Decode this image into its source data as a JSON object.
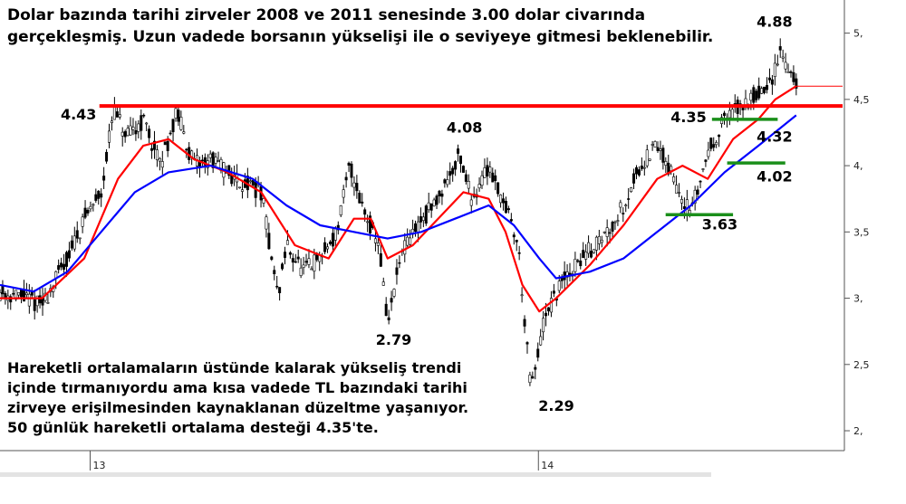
{
  "chart_data": {
    "type": "line",
    "subtype": "candlestick-with-moving-averages",
    "title_lines": [
      "Dolar bazında tarihi zirveler 2008 ve 2011 senesinde 3.00 dolar civarında",
      "gerçekleşmiş. Uzun vadede borsanın yükselişi ile o seviyeye gitmesi beklenebilir."
    ],
    "comment_lines": [
      "Hareketli ortalamaların üstünde kalarak yükseliş trendi",
      "içinde tırmanıyordu ama kısa vadede TL bazındaki tarihi",
      "zirveye erişilmesinden kaynaklanan düzeltme yaşanıyor.",
      "50 günlük hareketli ortalama desteği 4.35'te."
    ],
    "y_axis": {
      "ylim": [
        1.85,
        5.25
      ],
      "ticks": [
        {
          "value": 5.0,
          "label": "5,"
        },
        {
          "value": 4.5,
          "label": "4,5"
        },
        {
          "value": 4.0,
          "label": "4,"
        },
        {
          "value": 3.5,
          "label": "3,5"
        },
        {
          "value": 3.0,
          "label": "3,"
        },
        {
          "value": 2.5,
          "label": "2,5"
        },
        {
          "value": 2.0,
          "label": "2,"
        }
      ]
    },
    "x_axis": {
      "xlim": [
        0,
        100
      ],
      "ticks": [
        {
          "x": 10.7,
          "label": "13"
        },
        {
          "x": 63.9,
          "label": "14"
        }
      ]
    },
    "price_path": [
      [
        0,
        3.05
      ],
      [
        3,
        3.0
      ],
      [
        5,
        2.95
      ],
      [
        8,
        3.3
      ],
      [
        10,
        3.6
      ],
      [
        12,
        3.8
      ],
      [
        13.5,
        4.43
      ],
      [
        15,
        4.2
      ],
      [
        17,
        4.35
      ],
      [
        19,
        4.0
      ],
      [
        21,
        4.4
      ],
      [
        23,
        4.0
      ],
      [
        25,
        4.05
      ],
      [
        28,
        3.9
      ],
      [
        31,
        3.8
      ],
      [
        33,
        3.0
      ],
      [
        34,
        3.4
      ],
      [
        36,
        3.2
      ],
      [
        38,
        3.3
      ],
      [
        40,
        3.5
      ],
      [
        41.5,
        4.0
      ],
      [
        43,
        3.7
      ],
      [
        45,
        3.4
      ],
      [
        46,
        2.79
      ],
      [
        47.5,
        3.3
      ],
      [
        49.5,
        3.55
      ],
      [
        51.5,
        3.7
      ],
      [
        54.5,
        4.08
      ],
      [
        56,
        3.75
      ],
      [
        58,
        4.0
      ],
      [
        60,
        3.7
      ],
      [
        61.5,
        3.4
      ],
      [
        63,
        2.29
      ],
      [
        64.5,
        2.8
      ],
      [
        66.5,
        3.1
      ],
      [
        69,
        3.3
      ],
      [
        72,
        3.5
      ],
      [
        74,
        3.7
      ],
      [
        76,
        4.0
      ],
      [
        78,
        4.15
      ],
      [
        80,
        3.9
      ],
      [
        82,
        3.63
      ],
      [
        84,
        4.1
      ],
      [
        86,
        4.35
      ],
      [
        88,
        4.45
      ],
      [
        90,
        4.55
      ],
      [
        91.5,
        4.6
      ],
      [
        92.5,
        4.88
      ],
      [
        93.5,
        4.75
      ],
      [
        94.5,
        4.6
      ]
    ],
    "series": [
      {
        "name": "",
        "color": "#ff0000",
        "points": [
          [
            0,
            3.0
          ],
          [
            5,
            3.0
          ],
          [
            10,
            3.3
          ],
          [
            14,
            3.9
          ],
          [
            17,
            4.15
          ],
          [
            20,
            4.2
          ],
          [
            23,
            4.05
          ],
          [
            27,
            3.95
          ],
          [
            31,
            3.8
          ],
          [
            35,
            3.4
          ],
          [
            39,
            3.3
          ],
          [
            42,
            3.6
          ],
          [
            44,
            3.6
          ],
          [
            46,
            3.3
          ],
          [
            49,
            3.4
          ],
          [
            52,
            3.6
          ],
          [
            55,
            3.8
          ],
          [
            58,
            3.75
          ],
          [
            60,
            3.5
          ],
          [
            62,
            3.1
          ],
          [
            64,
            2.9
          ],
          [
            66,
            3.0
          ],
          [
            70,
            3.25
          ],
          [
            74,
            3.55
          ],
          [
            78,
            3.9
          ],
          [
            81,
            4.0
          ],
          [
            84,
            3.9
          ],
          [
            87,
            4.2
          ],
          [
            90,
            4.35
          ],
          [
            92,
            4.5
          ],
          [
            94.5,
            4.6
          ]
        ]
      },
      {
        "name": "",
        "color": "#0000ff",
        "points": [
          [
            0,
            3.1
          ],
          [
            4,
            3.05
          ],
          [
            8,
            3.2
          ],
          [
            12,
            3.5
          ],
          [
            16,
            3.8
          ],
          [
            20,
            3.95
          ],
          [
            25,
            4.0
          ],
          [
            30,
            3.9
          ],
          [
            34,
            3.7
          ],
          [
            38,
            3.55
          ],
          [
            42,
            3.5
          ],
          [
            46,
            3.45
          ],
          [
            50,
            3.5
          ],
          [
            54,
            3.6
          ],
          [
            58,
            3.7
          ],
          [
            61,
            3.55
          ],
          [
            64,
            3.3
          ],
          [
            66,
            3.15
          ],
          [
            70,
            3.2
          ],
          [
            74,
            3.3
          ],
          [
            78,
            3.5
          ],
          [
            82,
            3.7
          ],
          [
            86,
            3.95
          ],
          [
            90,
            4.15
          ],
          [
            94.5,
            4.38
          ]
        ]
      }
    ],
    "resistance": {
      "value": 4.45,
      "color": "#ff0000",
      "from_x": 11.8,
      "to_x": 100
    },
    "last_price_line": {
      "value": 4.6,
      "color": "#ff0000",
      "from_x": 94.5,
      "to_x": 100
    },
    "support_lines": [
      {
        "value": 4.35,
        "label": "4.35",
        "from_x": 84.5,
        "to_x": 92.3,
        "color": "#1a8f1a"
      },
      {
        "value": 4.02,
        "label": "4.02",
        "from_x": 86.3,
        "to_x": 93.2,
        "color": "#1a8f1a"
      },
      {
        "value": 3.63,
        "label": "3.63",
        "from_x": 79.0,
        "to_x": 87.0,
        "color": "#1a8f1a"
      }
    ],
    "annotations": [
      {
        "label": "4.43",
        "x": 7.2,
        "y": 4.35
      },
      {
        "label": "4.08",
        "x": 53.0,
        "y": 4.25
      },
      {
        "label": "2.79",
        "x": 44.6,
        "y": 2.65
      },
      {
        "label": "2.29",
        "x": 63.9,
        "y": 2.15
      },
      {
        "label": "4.88",
        "x": 89.8,
        "y": 5.05
      },
      {
        "label": "4.32",
        "x": 89.8,
        "y": 4.18
      },
      {
        "label": "4.35",
        "x": 79.6,
        "y": 4.33
      },
      {
        "label": "4.02",
        "x": 89.8,
        "y": 3.88
      },
      {
        "label": "3.63",
        "x": 83.3,
        "y": 3.52
      }
    ]
  }
}
